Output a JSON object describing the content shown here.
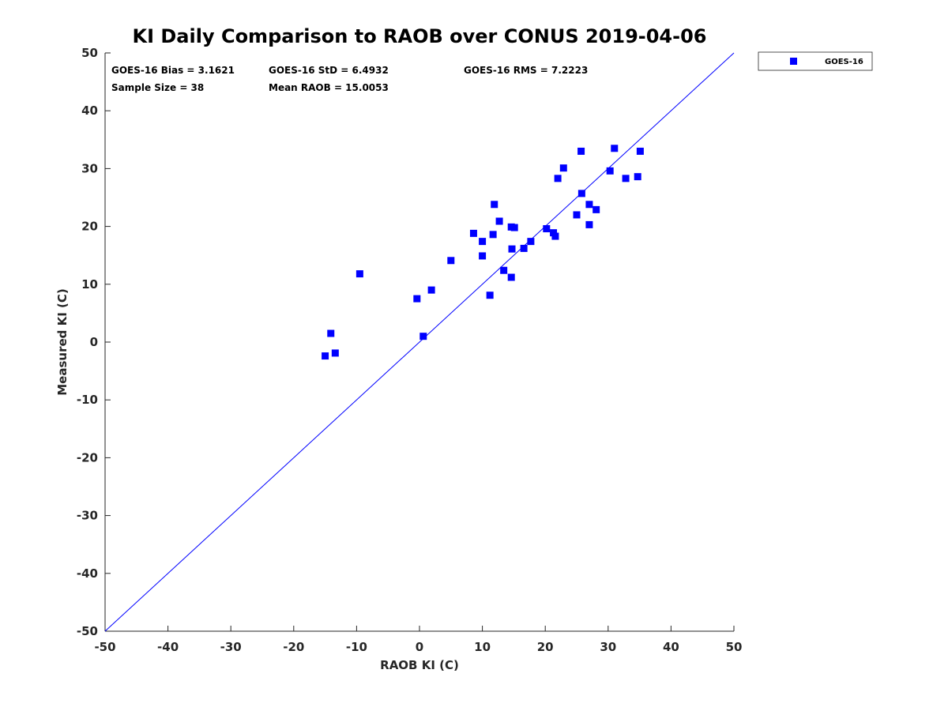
{
  "colors": {
    "series": "#0000ff",
    "axis": "#262626",
    "line": "#0000ff"
  },
  "chart_data": {
    "type": "scatter",
    "title": "KI Daily Comparison to RAOB over CONUS 2019-04-06",
    "xlabel": "RAOB KI (C)",
    "ylabel": "Measured KI (C)",
    "xlim": [
      -50,
      50
    ],
    "ylim": [
      -50,
      50
    ],
    "xticks": [
      -50,
      -40,
      -30,
      -20,
      -10,
      0,
      10,
      20,
      30,
      40,
      50
    ],
    "yticks": [
      -50,
      -40,
      -30,
      -20,
      -10,
      0,
      10,
      20,
      30,
      40,
      50
    ],
    "grid": false,
    "legend_position": "outside-top-right",
    "reference_line": {
      "from": [
        -50,
        -50
      ],
      "to": [
        50,
        50
      ]
    },
    "stats": {
      "bias": "GOES-16 Bias = 3.1621",
      "std": "GOES-16 StD = 6.4932",
      "rms": "GOES-16 RMS = 7.2223",
      "sample_size": "Sample Size = 38",
      "mean_raob": "Mean RAOB = 15.0053"
    },
    "series": [
      {
        "name": "GOES-16",
        "points": [
          [
            -15.0,
            -2.4
          ],
          [
            -14.1,
            1.5
          ],
          [
            -13.4,
            -1.9
          ],
          [
            -9.5,
            11.8
          ],
          [
            -0.4,
            7.5
          ],
          [
            0.6,
            1.0
          ],
          [
            1.9,
            9.0
          ],
          [
            5.0,
            14.1
          ],
          [
            8.6,
            18.8
          ],
          [
            10.0,
            17.4
          ],
          [
            10.0,
            14.9
          ],
          [
            11.2,
            8.1
          ],
          [
            11.7,
            18.6
          ],
          [
            11.9,
            23.8
          ],
          [
            12.7,
            20.9
          ],
          [
            13.4,
            12.4
          ],
          [
            14.6,
            19.9
          ],
          [
            15.1,
            19.8
          ],
          [
            14.7,
            16.1
          ],
          [
            14.6,
            11.2
          ],
          [
            16.6,
            16.2
          ],
          [
            17.7,
            17.4
          ],
          [
            20.2,
            19.6
          ],
          [
            21.3,
            18.9
          ],
          [
            21.6,
            18.3
          ],
          [
            22.0,
            28.3
          ],
          [
            22.9,
            30.1
          ],
          [
            25.0,
            22.0
          ],
          [
            25.7,
            33.0
          ],
          [
            25.8,
            25.7
          ],
          [
            27.0,
            23.8
          ],
          [
            27.0,
            20.3
          ],
          [
            28.1,
            22.9
          ],
          [
            30.3,
            29.6
          ],
          [
            31.0,
            33.5
          ],
          [
            32.8,
            28.3
          ],
          [
            34.7,
            28.6
          ],
          [
            35.1,
            33.0
          ]
        ]
      }
    ]
  }
}
